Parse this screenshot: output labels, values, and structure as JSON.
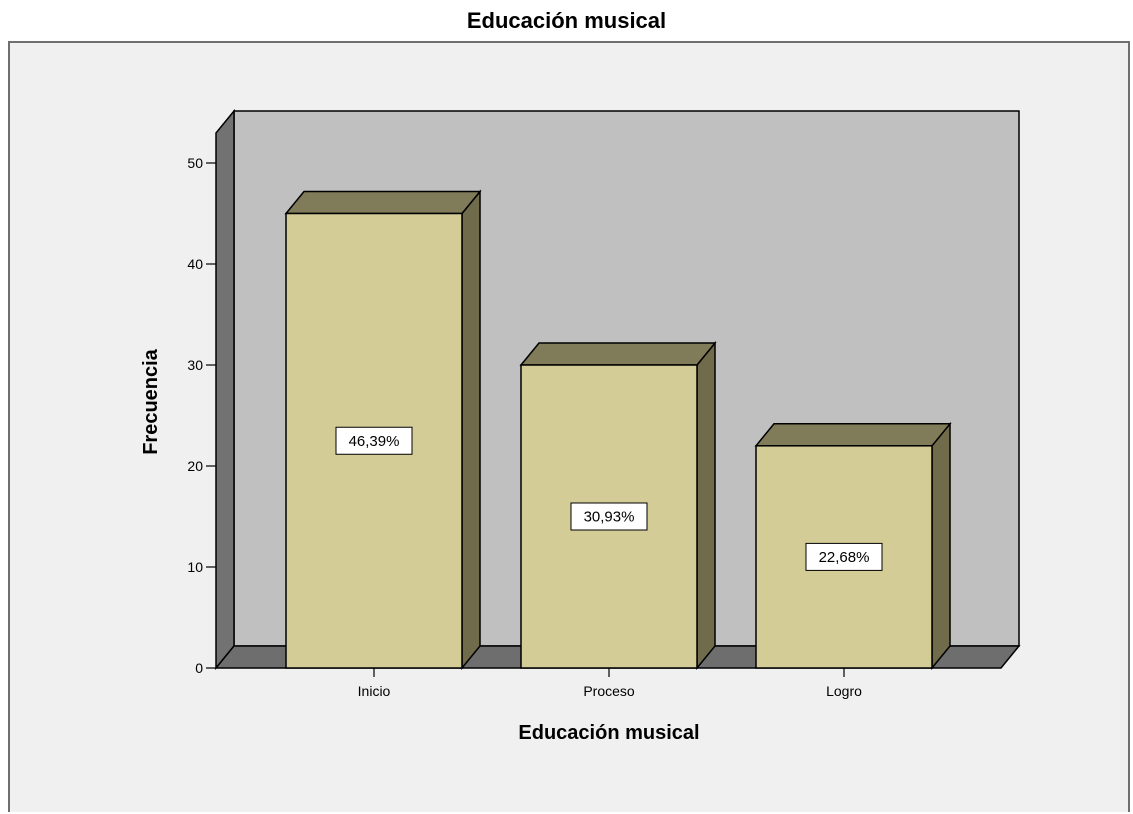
{
  "title": "Educación musical",
  "colors": {
    "bar_front": "#d3cc96",
    "bar_top": "#807b58",
    "bar_side": "#6f6b4b",
    "wall_back": "#c0c0c0",
    "wall_left": "#727272",
    "floor": "#6e6e6e",
    "frame_bg": "#f0f0f0"
  },
  "chart_data": {
    "type": "bar",
    "title": "Educación musical",
    "xlabel": "Educación musical",
    "ylabel": "Frecuencia",
    "categories": [
      "Inicio",
      "Proceso",
      "Logro"
    ],
    "values": [
      45,
      30,
      22
    ],
    "data_labels": [
      "46,39%",
      "30,93%",
      "22,68%"
    ],
    "ylim": [
      0,
      50
    ],
    "yticks": [
      0,
      10,
      20,
      30,
      40,
      50
    ],
    "ytick_labels": [
      "0",
      "10",
      "20",
      "30",
      "40",
      "50"
    ],
    "style": "3d",
    "grid": false,
    "legend": "none"
  }
}
